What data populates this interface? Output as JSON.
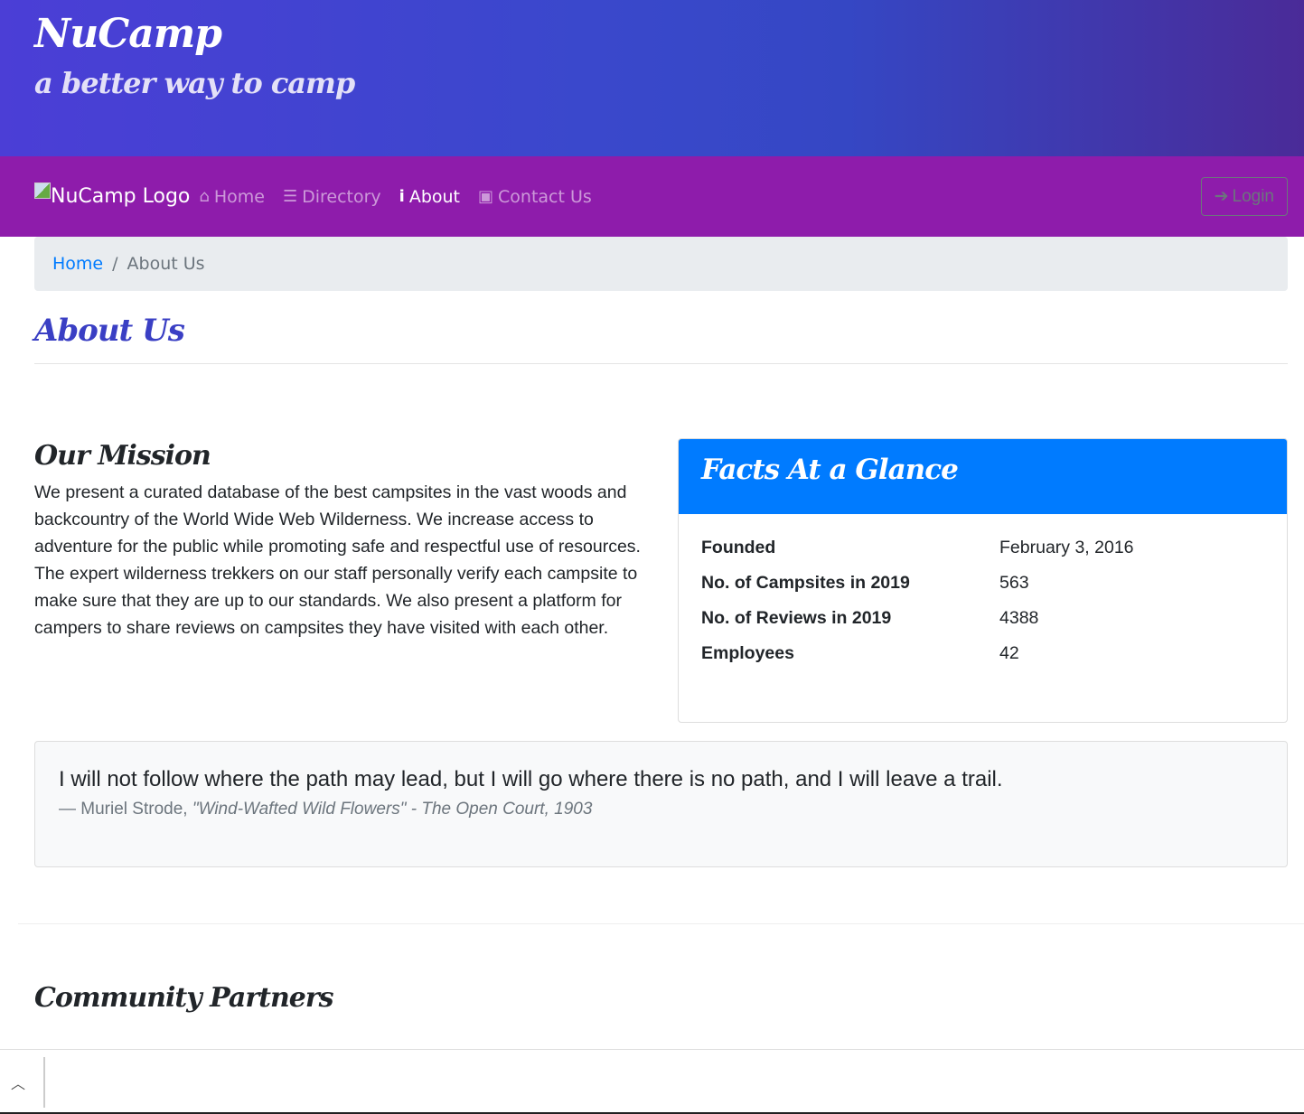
{
  "header": {
    "title": "NuCamp",
    "subtitle": "a better way to camp"
  },
  "nav": {
    "logo_alt": "NuCamp Logo",
    "items": [
      {
        "label": "Home",
        "icon": "home-icon"
      },
      {
        "label": "Directory",
        "icon": "list-icon"
      },
      {
        "label": "About",
        "icon": "info-icon",
        "active": true
      },
      {
        "label": "Contact Us",
        "icon": "address-card-icon"
      }
    ],
    "login": "Login"
  },
  "breadcrumb": {
    "home": "Home",
    "separator": "/",
    "current": "About Us"
  },
  "page_title": "About Us",
  "mission": {
    "title": "Our Mission",
    "text": "We present a curated database of the best campsites in the vast woods and backcountry of the World Wide Web Wilderness. We increase access to adventure for the public while promoting safe and respectful use of resources. The expert wilderness trekkers on our staff personally verify each campsite to make sure that they are up to our standards. We also present a platform for campers to share reviews on campsites they have visited with each other."
  },
  "facts": {
    "title": "Facts At a Glance",
    "rows": [
      {
        "label": "Founded",
        "value": "February 3, 2016"
      },
      {
        "label": "No. of Campsites in 2019",
        "value": "563"
      },
      {
        "label": "No. of Reviews in 2019",
        "value": "4388"
      },
      {
        "label": "Employees",
        "value": "42"
      }
    ]
  },
  "quote": {
    "text": "I will not follow where the path may lead, but I will go where there is no path, and I will leave a trail.",
    "author": "— Muriel Strode, ",
    "source": "\"Wind-Wafted Wild Flowers\" - The Open Court, 1903"
  },
  "partners_title": "Community Partners",
  "colors": {
    "navbar": "#8e1cab",
    "accent": "#007bff",
    "heading": "#3a3fc4"
  }
}
